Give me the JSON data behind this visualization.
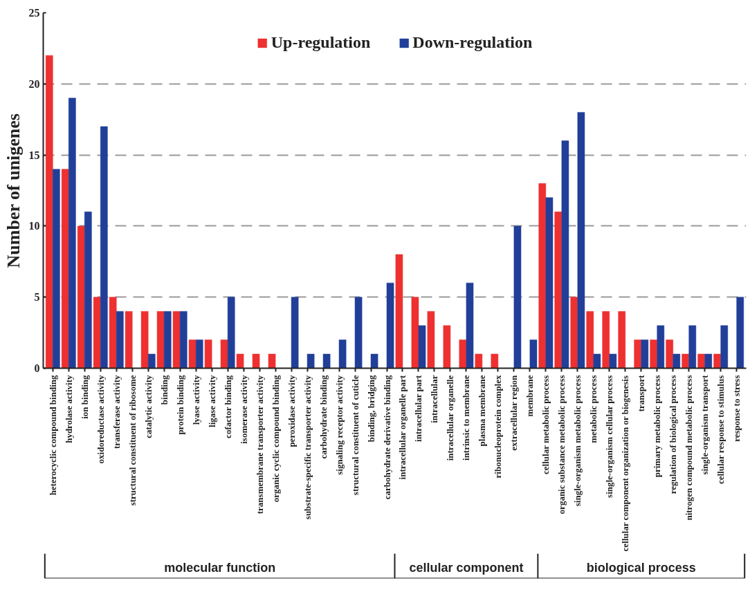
{
  "chart_data": {
    "type": "bar",
    "ylabel": "Number of unigenes",
    "categories": [
      "heterocyclic compound binding",
      "hydrolase activity",
      "ion binding",
      "oxidoreductase activity",
      "transferase activity",
      "structural constituent of ribosome",
      "catalytic activity",
      "binding",
      "protein binding",
      "lyase activity",
      "ligase activity",
      "cofactor binding",
      "isomerase activity",
      "transmembrane transporter activity",
      "organic cyclic compound binding",
      "peroxidase activity",
      "substrate-specific transporter activity",
      "carbohydrate binding",
      "signaling receptor activity",
      "structural constituent of cuticle",
      "binding, bridging",
      "carbohydrate derivative binding",
      "intracellular organelle part",
      "intracellular part",
      "intracellular",
      "intracellular organelle",
      "intrinsic to membrane",
      "plasma membrane",
      "ribonucleoprotein complex",
      "extracellular region",
      "membrane",
      "cellular metabolic process",
      "organic substance metabolic process",
      "single-organism metabolic process",
      "metabolic process",
      "single-organism cellular process",
      "cellular component organization or biogenesis",
      "transport",
      "primary metabolic process",
      "regulation of biological process",
      "nitrogen compound metabolic process",
      "single-organism transport",
      "cellular response to stimulus",
      "response to stress"
    ],
    "series": [
      {
        "name": "Up-regulation",
        "color": "#ee3030",
        "values": [
          22,
          14,
          10,
          5,
          5,
          4,
          4,
          4,
          4,
          2,
          2,
          2,
          1,
          1,
          1,
          0,
          0,
          0,
          0,
          0,
          0,
          0,
          8,
          5,
          4,
          3,
          2,
          1,
          1,
          0,
          0,
          13,
          11,
          5,
          4,
          4,
          4,
          2,
          2,
          2,
          1,
          1,
          1,
          0
        ]
      },
      {
        "name": "Down-regulation",
        "color": "#213f99",
        "values": [
          14,
          19,
          11,
          17,
          4,
          0,
          1,
          4,
          4,
          2,
          0,
          5,
          0,
          0,
          0,
          5,
          1,
          1,
          2,
          5,
          1,
          6,
          0,
          3,
          0,
          0,
          6,
          0,
          0,
          10,
          2,
          12,
          16,
          18,
          1,
          1,
          0,
          2,
          3,
          1,
          3,
          1,
          3,
          5
        ]
      }
    ],
    "ylim": [
      0,
      25
    ],
    "yticks": [
      0,
      5,
      10,
      15,
      20,
      25
    ],
    "grid": "y",
    "legend": "top",
    "annotations": [
      "molecular function",
      "cellular component",
      "biological process"
    ]
  }
}
